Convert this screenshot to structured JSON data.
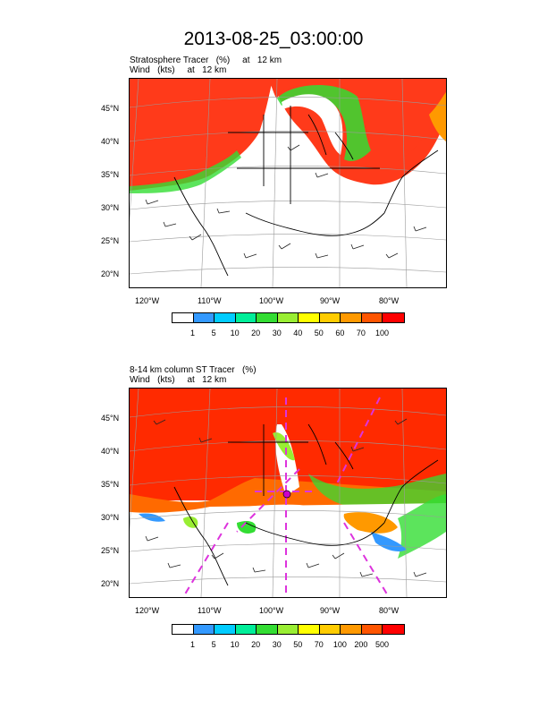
{
  "title": "2013-08-25_03:00:00",
  "panels": [
    {
      "subtitle_line1": "Stratosphere Tracer   (%)     at   12 km",
      "subtitle_line2": "Wind   (kts)     at   12 km",
      "lat_labels": [
        "45°N",
        "40°N",
        "35°N",
        "30°N",
        "25°N",
        "20°N"
      ],
      "lon_labels": [
        "120°W",
        "110°W",
        "100°W",
        "90°W",
        "80°W"
      ],
      "colorbar_labels": [
        "1",
        "5",
        "10",
        "20",
        "30",
        "40",
        "50",
        "60",
        "70",
        "100"
      ]
    },
    {
      "subtitle_line1": "8-14 km column ST Tracer   (%)",
      "subtitle_line2": "Wind   (kts)     at   12 km",
      "lat_labels": [
        "45°N",
        "40°N",
        "35°N",
        "30°N",
        "25°N",
        "20°N"
      ],
      "lon_labels": [
        "120°W",
        "110°W",
        "100°W",
        "90°W",
        "80°W"
      ],
      "colorbar_labels": [
        "1",
        "5",
        "10",
        "20",
        "30",
        "50",
        "70",
        "100",
        "200",
        "500"
      ]
    }
  ],
  "colorbar_colors": [
    "#ffffff",
    "#3399ff",
    "#00ccff",
    "#00ee99",
    "#33dd33",
    "#99ee33",
    "#ffff00",
    "#ffcc00",
    "#ff9900",
    "#ff5500",
    "#ff0000"
  ],
  "colors": {
    "tracer_high": "#ff2a00",
    "tracer_mid": "#ff6a00",
    "land_line": "#000000",
    "grid": "#999999",
    "trajectory": "#dd33dd"
  }
}
